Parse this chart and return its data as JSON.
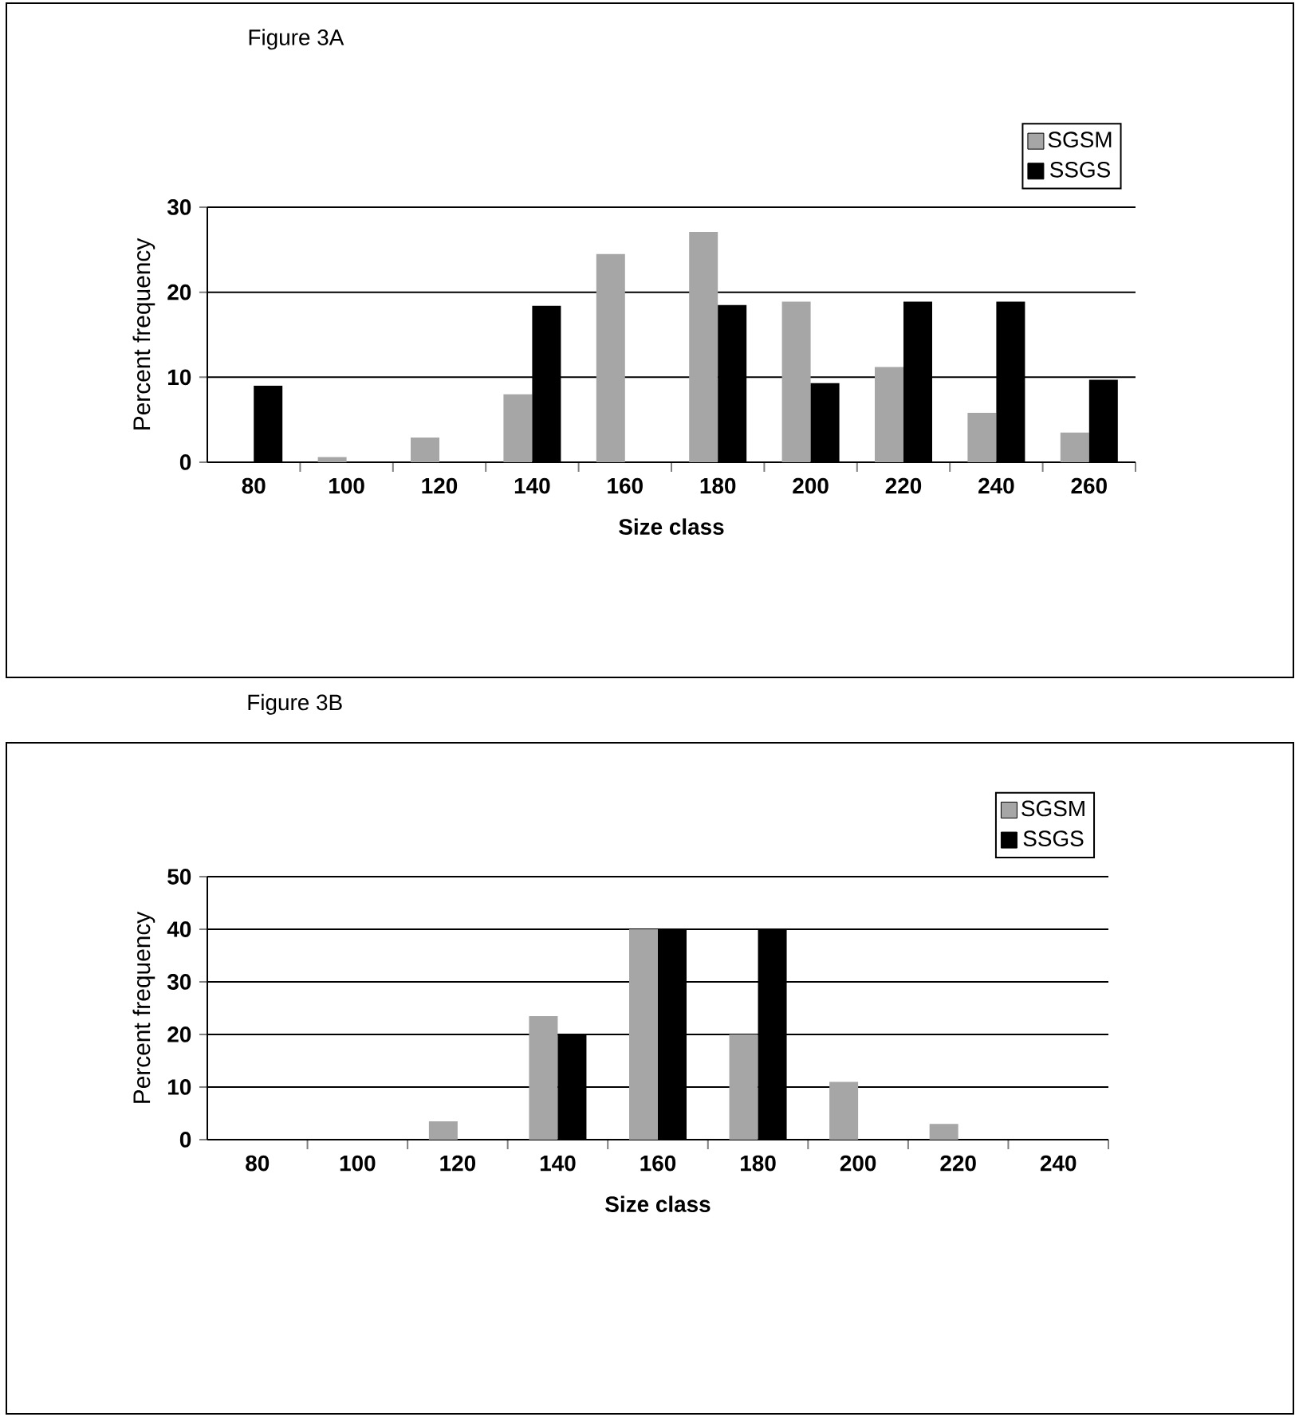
{
  "chart_data": [
    {
      "type": "bar",
      "title": "Figure 3A",
      "xlabel": "Size class",
      "ylabel": "Percent frequency",
      "categories": [
        "80",
        "100",
        "120",
        "140",
        "160",
        "180",
        "200",
        "220",
        "240",
        "260"
      ],
      "series": [
        {
          "name": "SGSM",
          "color": "#a6a6a6",
          "values": [
            0,
            0.6,
            2.9,
            8.0,
            24.5,
            27.1,
            18.9,
            11.2,
            5.8,
            3.5
          ]
        },
        {
          "name": "SSGS",
          "color": "#000000",
          "values": [
            9.0,
            0,
            0,
            18.4,
            0,
            18.5,
            9.3,
            18.9,
            18.9,
            9.7
          ]
        }
      ],
      "ylim": [
        0,
        30
      ],
      "yticks": [
        0,
        10,
        20,
        30
      ],
      "grid": "y",
      "legend": "top right"
    },
    {
      "type": "bar",
      "title": "Figure 3B",
      "xlabel": "Size class",
      "ylabel": "Percent frequency",
      "categories": [
        "80",
        "100",
        "120",
        "140",
        "160",
        "180",
        "200",
        "220",
        "240"
      ],
      "series": [
        {
          "name": "SGSM",
          "color": "#a6a6a6",
          "values": [
            0,
            0,
            3.5,
            23.5,
            40,
            20,
            11,
            3,
            0
          ]
        },
        {
          "name": "SSGS",
          "color": "#000000",
          "values": [
            0,
            0,
            0,
            20,
            40,
            40,
            0,
            0,
            0
          ]
        }
      ],
      "ylim": [
        0,
        50
      ],
      "yticks": [
        0,
        10,
        20,
        30,
        40,
        50
      ],
      "grid": "y",
      "legend": "top right"
    }
  ]
}
